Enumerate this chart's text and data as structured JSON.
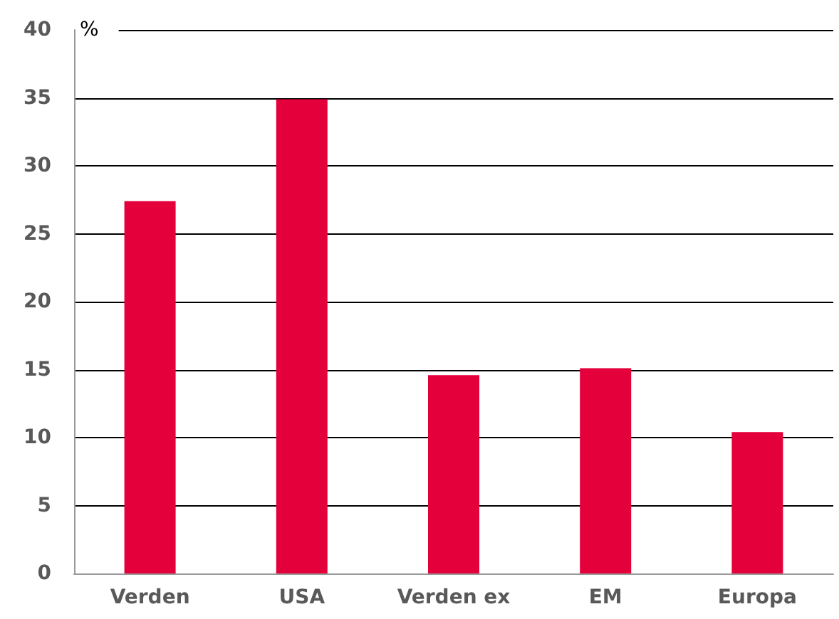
{
  "chart_data": {
    "type": "bar",
    "ylabel": "%",
    "categories": [
      "Verden",
      "USA",
      "Verden ex",
      "EM",
      "Europa"
    ],
    "series": [
      {
        "color": "#e4003b",
        "values": [
          27.4,
          34.9,
          14.6,
          15.1,
          10.4
        ]
      }
    ],
    "ylim": [
      0,
      40
    ],
    "yticks": [
      0,
      5,
      10,
      15,
      20,
      25,
      30,
      35,
      40
    ],
    "grid": "y"
  }
}
